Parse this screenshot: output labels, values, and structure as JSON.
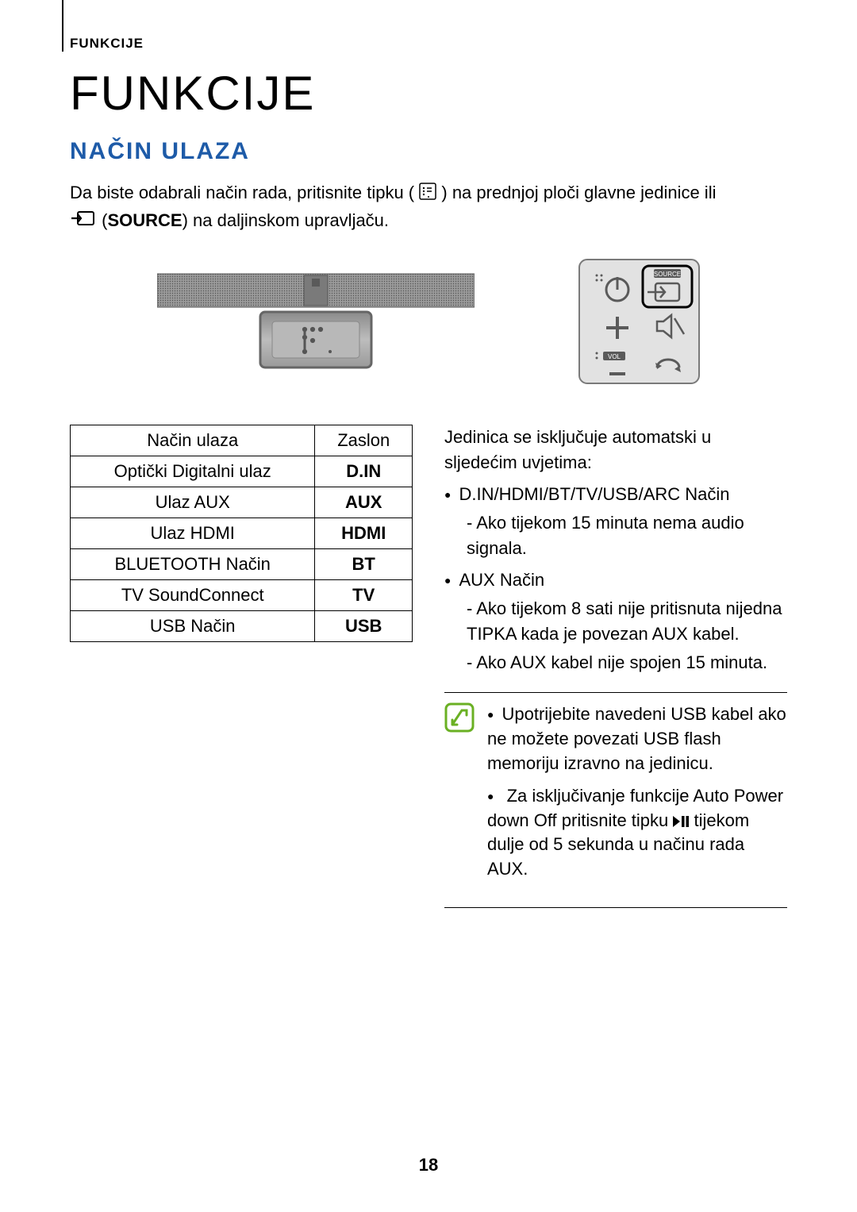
{
  "breadcrumb": "FUNKCIJE",
  "title": "FUNKCIJE",
  "section": "NAČIN ULAZA",
  "intro_pre": "Da biste odabrali način rada, pritisnite tipku (",
  "intro_mid": ") na prednjoj ploči glavne jedinice ili",
  "intro_source_label": "SOURCE",
  "intro_post": ") na daljinskom upravljaču.",
  "soundbar_display_text": "F.",
  "remote_label_source": "SOURCE",
  "remote_label_vol": "VOL",
  "table": {
    "rows": [
      {
        "mode": "Način ulaza",
        "display": "Zaslon",
        "header": true
      },
      {
        "mode": "Optički Digitalni ulaz",
        "display": "D.IN"
      },
      {
        "mode": "Ulaz AUX",
        "display": "AUX"
      },
      {
        "mode": "Ulaz HDMI",
        "display": "HDMI"
      },
      {
        "mode": "BLUETOOTH Način",
        "display": "BT"
      },
      {
        "mode": "TV SoundConnect",
        "display": "TV"
      },
      {
        "mode": "USB Način",
        "display": "USB"
      }
    ]
  },
  "right": {
    "lead": "Jedinica se isključuje automatski u sljedećim uvjetima:",
    "b1": "D.IN/HDMI/BT/TV/USB/ARC Način",
    "b1s1": "-  Ako tijekom 15 minuta nema audio signala.",
    "b2": "AUX Način",
    "b2s1": "-  Ako tijekom 8 sati nije pritisnuta nijedna TIPKA kada je povezan AUX kabel.",
    "b2s2": "-  Ako AUX kabel nije spojen 15 minuta."
  },
  "note": {
    "n1": "Upotrijebite navedeni USB kabel ako ne možete povezati USB flash memoriju izravno na jedinicu.",
    "n2_pre": "Za isključivanje funkcije Auto Power down Off pritisnite tipku ",
    "n2_post": " tijekom dulje od 5 sekunda u načinu rada AUX."
  },
  "page_number": "18",
  "colors": {
    "accent_blue": "#1e5ba8",
    "note_green": "#6ab023",
    "remote_bg": "#d9d9d9",
    "remote_border": "#7a7a7a",
    "soundbar_top": "#8a8a8a",
    "soundbar_bottom": "#c6c6c6",
    "soundbar_display": "#b8b8b8"
  }
}
